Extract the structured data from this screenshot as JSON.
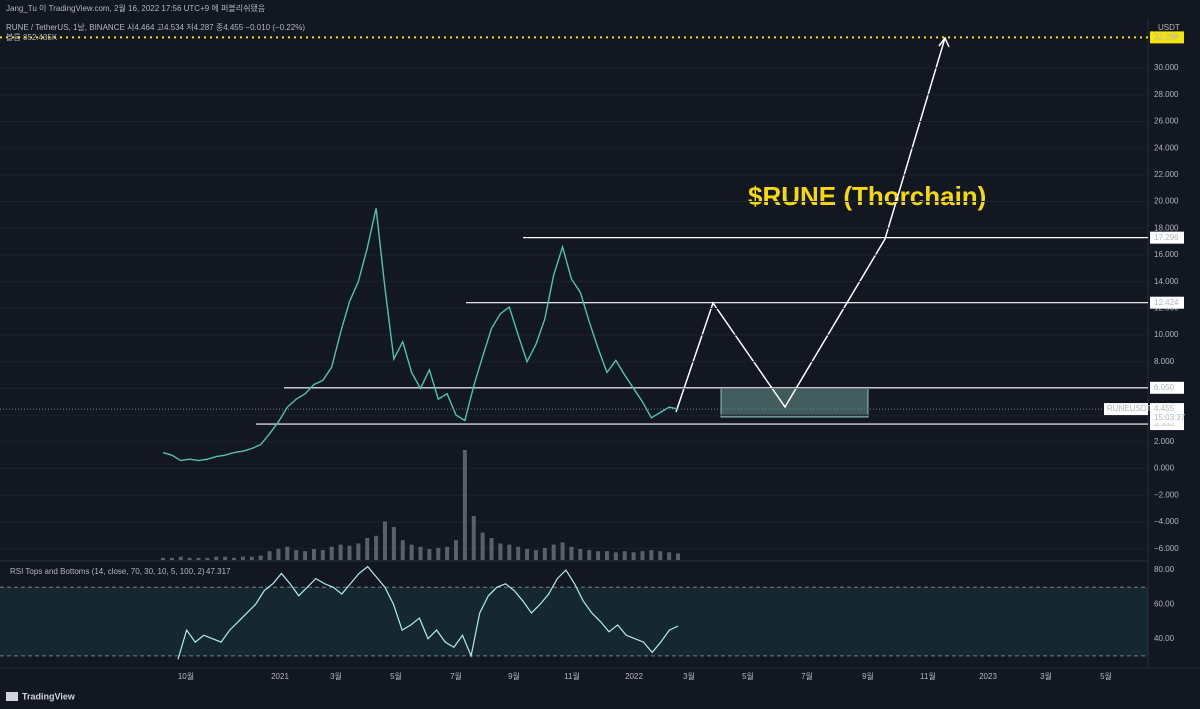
{
  "chart_data": {
    "type": "line",
    "header": "Jang_Tu 이 TradingView.com, 2월 16, 2022 17:56 UTC+9 에 퍼블리쉬됐음",
    "legend": "RUNE / TetherUS, 1날, BINANCE  시4.464  고4.534  저4.287  종4.455  −0.010 (−0.22%)",
    "volume_label": "볼륨 852.435K",
    "title": "$RUNE (Thorchain)",
    "currency": "USDT",
    "symbol": "RUNEUSDT",
    "countdown": "15:03:37",
    "current_price": 4.455,
    "target": 32.298,
    "levels": [
      17.296,
      12.424,
      {
        "value": 6.05,
        "label": "6.050"
      },
      3.333
    ],
    "ylim": [
      -6.85,
      33.75
    ],
    "yticks": [
      {
        "value": 30,
        "label": "30.000"
      },
      {
        "value": 28,
        "label": "28.000"
      },
      {
        "value": 26,
        "label": "26.000"
      },
      {
        "value": 24,
        "label": "24.000"
      },
      {
        "value": 22,
        "label": "22.000"
      },
      {
        "value": 20,
        "label": "20.000"
      },
      {
        "value": 18,
        "label": "18.000"
      },
      {
        "value": 16,
        "label": "16.000"
      },
      {
        "value": 14,
        "label": "14.000"
      },
      {
        "value": 12,
        "label": "12.000"
      },
      {
        "value": 10,
        "label": "10.000"
      },
      {
        "value": 8,
        "label": "8.000"
      },
      {
        "value": 6,
        "label": "6.000"
      },
      {
        "value": 4,
        "label": "4.000"
      },
      {
        "value": 2,
        "label": "2.000"
      },
      {
        "value": 0,
        "label": "0.000"
      },
      {
        "value": -2,
        "label": "−2.000"
      },
      {
        "value": -4,
        "label": "−4.000"
      },
      {
        "value": -6,
        "label": "−6.000"
      }
    ],
    "series": [
      {
        "name": "RUNEUSDT",
        "color": "#4fc3b0",
        "values": [
          1.2,
          1.0,
          0.6,
          0.7,
          0.6,
          0.7,
          0.9,
          1.0,
          1.2,
          1.3,
          1.5,
          1.8,
          2.6,
          3.5,
          4.6,
          5.2,
          5.6,
          6.3,
          6.6,
          7.6,
          10.2,
          12.5,
          14.0,
          16.5,
          19.5,
          13.5,
          8.2,
          9.5,
          7.2,
          6.0,
          7.4,
          5.2,
          5.6,
          4.0,
          3.6,
          6.2,
          8.4,
          10.5,
          11.6,
          12.1,
          10.0,
          8.0,
          9.3,
          11.2,
          14.5,
          16.6,
          14.2,
          13.2,
          11.0,
          9.0,
          7.2,
          8.1,
          7.0,
          6.0,
          5.0,
          3.8,
          4.2,
          4.6,
          4.455
        ]
      }
    ],
    "volume": {
      "color": "#8a8f98",
      "values": [
        2,
        2,
        3,
        2,
        2,
        2,
        3,
        3,
        2,
        3,
        3,
        4,
        8,
        10,
        12,
        9,
        8,
        10,
        9,
        12,
        14,
        13,
        15,
        20,
        22,
        35,
        30,
        18,
        14,
        12,
        10,
        11,
        12,
        18,
        100,
        40,
        25,
        20,
        15,
        14,
        12,
        10,
        9,
        11,
        14,
        16,
        12,
        10,
        9,
        8,
        8,
        7,
        8,
        7,
        8,
        9,
        8,
        7,
        6
      ]
    },
    "rsi": {
      "title": "RSI Tops and Bottoms (14, close, 70, 30, 10, 5, 100, 2)",
      "last": 47.317,
      "color": "#b2ebf2",
      "overbought": 70,
      "oversold": 30,
      "ylim": [
        23.5,
        84.1
      ],
      "yticks": [
        {
          "value": 80,
          "label": "80.00"
        },
        {
          "value": 60,
          "label": "60.00"
        },
        {
          "value": 40,
          "label": "40.00"
        }
      ],
      "values": [
        28,
        45,
        38,
        42,
        40,
        38,
        45,
        50,
        55,
        60,
        68,
        72,
        78,
        72,
        65,
        70,
        75,
        72,
        70,
        66,
        72,
        78,
        82,
        76,
        70,
        60,
        45,
        48,
        52,
        40,
        45,
        38,
        35,
        42,
        30,
        55,
        65,
        70,
        72,
        68,
        62,
        55,
        60,
        66,
        75,
        80,
        72,
        62,
        55,
        50,
        44,
        48,
        42,
        40,
        38,
        32,
        38,
        45,
        47.317
      ]
    },
    "x_labels": [
      "10월",
      "2021",
      "3월",
      "5월",
      "7월",
      "9월",
      "11월",
      "2022",
      "3월",
      "5월",
      "7월",
      "9월",
      "11월",
      "2023",
      "3월",
      "5월"
    ],
    "branding": "TradingView"
  }
}
